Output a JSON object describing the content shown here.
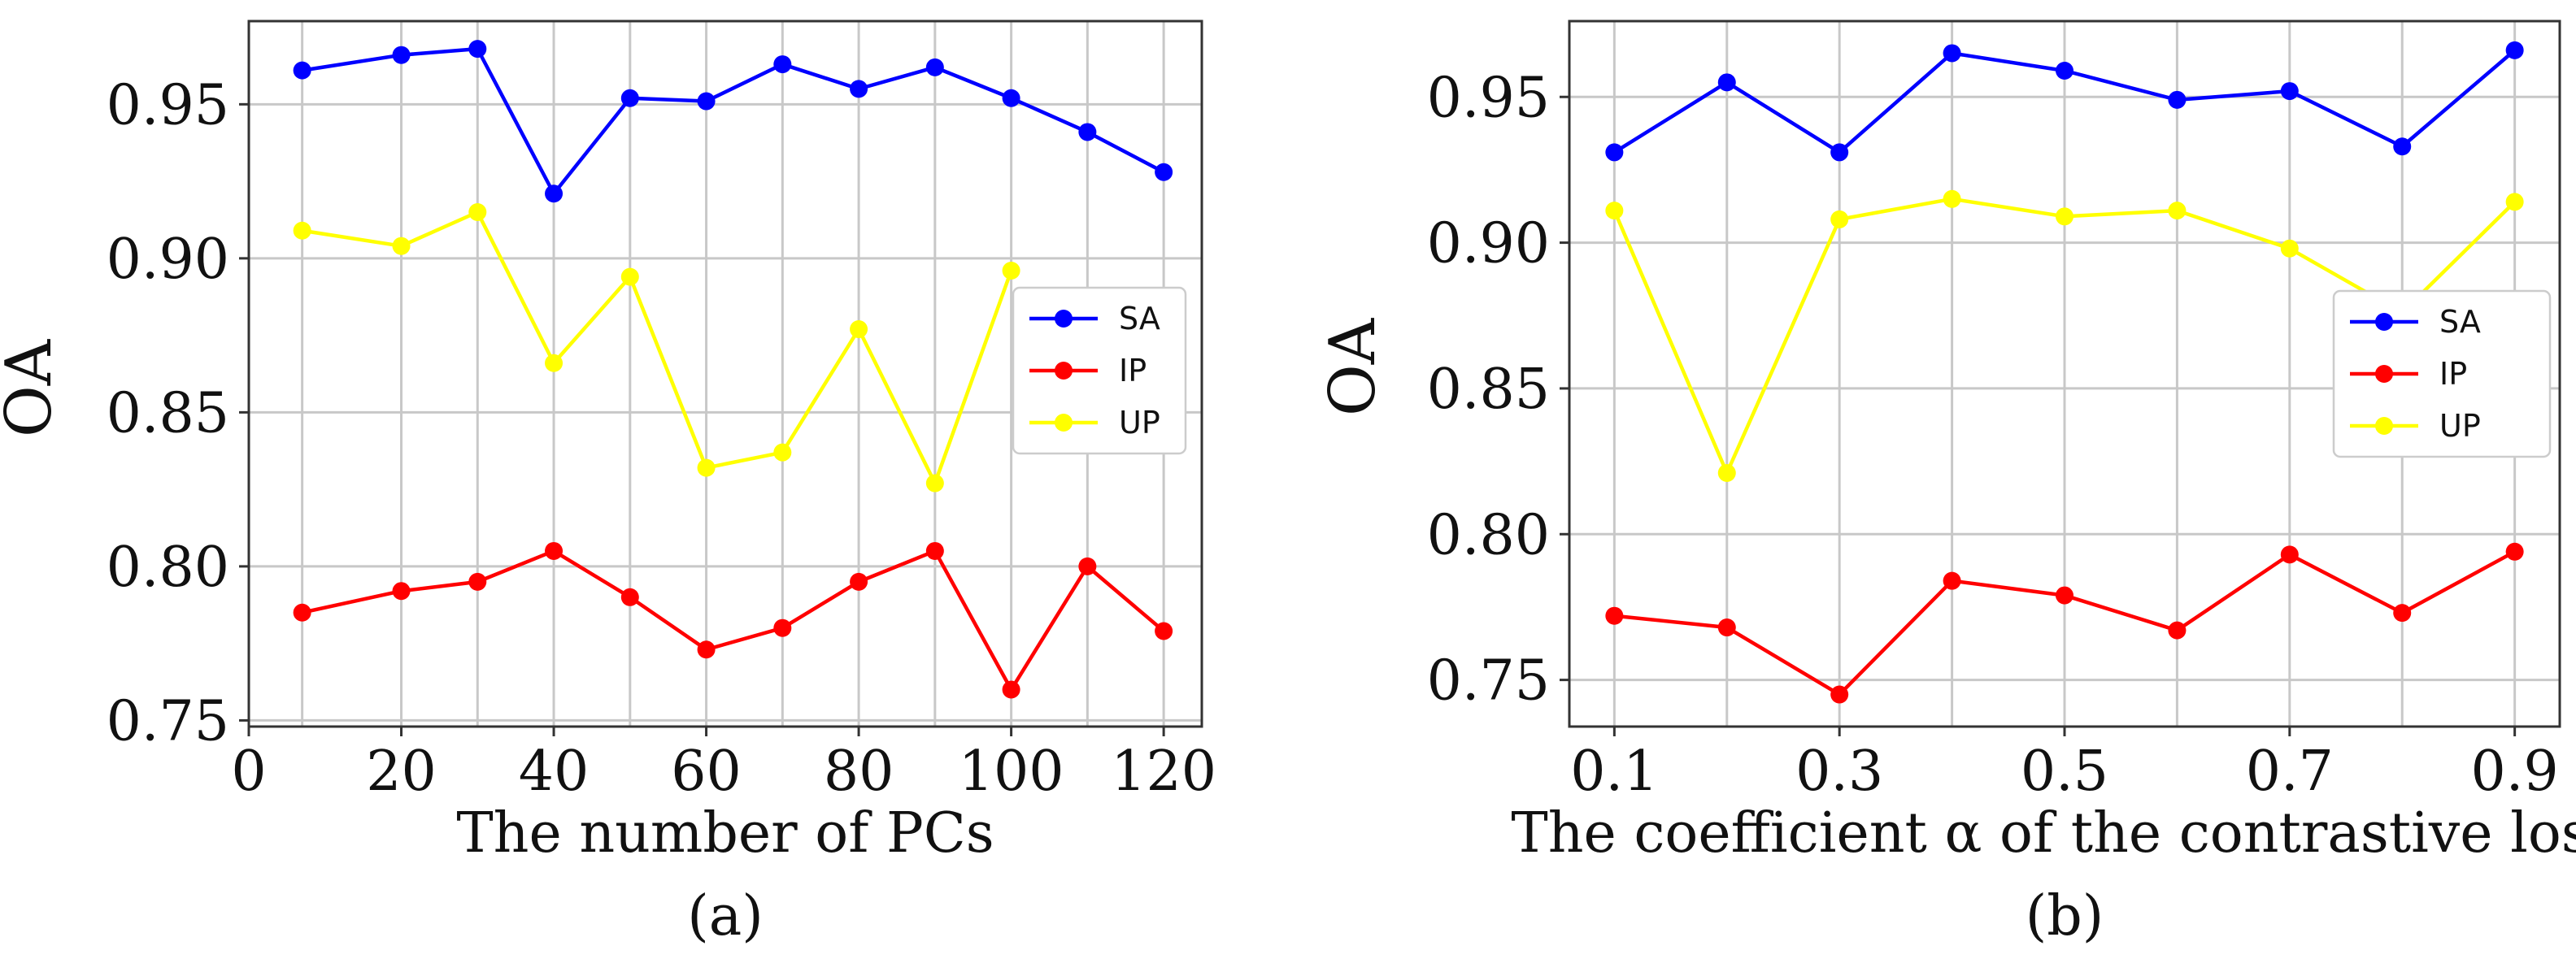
{
  "chart_data": [
    {
      "type": "line",
      "panel_label": "(a)",
      "xlabel": "The number of PCs",
      "ylabel": "OA",
      "xlim": [
        0,
        125
      ],
      "ylim": [
        0.748,
        0.977
      ],
      "xticks": [
        0,
        20,
        40,
        60,
        80,
        100,
        120
      ],
      "xtick_labels": [
        "0",
        "20",
        "40",
        "60",
        "80",
        "100",
        "120"
      ],
      "yticks": [
        0.75,
        0.8,
        0.85,
        0.9,
        0.95
      ],
      "ytick_labels": [
        "0.75",
        "0.80",
        "0.85",
        "0.90",
        "0.95"
      ],
      "grid": true,
      "legend_position": "center-right",
      "x": [
        7,
        20,
        30,
        40,
        50,
        60,
        70,
        80,
        90,
        100,
        110,
        120
      ],
      "series": [
        {
          "name": "SA",
          "color": "#0000ff",
          "values": [
            0.961,
            0.966,
            0.968,
            0.921,
            0.952,
            0.951,
            0.963,
            0.955,
            0.962,
            0.952,
            0.941,
            0.928
          ]
        },
        {
          "name": "IP",
          "color": "#ff0000",
          "values": [
            0.785,
            0.792,
            0.795,
            0.805,
            0.79,
            0.773,
            0.78,
            0.795,
            0.805,
            0.76,
            0.8,
            0.779
          ]
        },
        {
          "name": "UP",
          "color": "#ffff00",
          "values": [
            0.909,
            0.904,
            0.915,
            0.866,
            0.894,
            0.832,
            0.837,
            0.877,
            0.827,
            0.896,
            null,
            null
          ]
        }
      ]
    },
    {
      "type": "line",
      "panel_label": "(b)",
      "xlabel": "The coefficient α of the contrastive loss",
      "ylabel": "OA",
      "xlim": [
        0.06,
        0.94
      ],
      "ylim": [
        0.734,
        0.976
      ],
      "xticks": [
        0.1,
        0.3,
        0.5,
        0.7,
        0.9
      ],
      "xtick_labels": [
        "0.1",
        "0.3",
        "0.5",
        "0.7",
        "0.9"
      ],
      "yticks": [
        0.75,
        0.8,
        0.85,
        0.9,
        0.95
      ],
      "ytick_labels": [
        "0.75",
        "0.80",
        "0.85",
        "0.90",
        "0.95"
      ],
      "grid": true,
      "legend_position": "center-right",
      "x": [
        0.1,
        0.2,
        0.3,
        0.4,
        0.5,
        0.6,
        0.7,
        0.8,
        0.9
      ],
      "series": [
        {
          "name": "SA",
          "color": "#0000ff",
          "values": [
            0.931,
            0.955,
            0.931,
            0.965,
            0.959,
            0.949,
            0.952,
            0.933,
            0.966
          ]
        },
        {
          "name": "IP",
          "color": "#ff0000",
          "values": [
            0.772,
            0.768,
            0.745,
            0.784,
            0.779,
            0.767,
            0.793,
            0.773,
            0.794
          ]
        },
        {
          "name": "UP",
          "color": "#ffff00",
          "values": [
            0.911,
            0.821,
            0.908,
            0.915,
            0.909,
            0.911,
            0.898,
            0.876,
            0.914
          ]
        }
      ]
    }
  ]
}
